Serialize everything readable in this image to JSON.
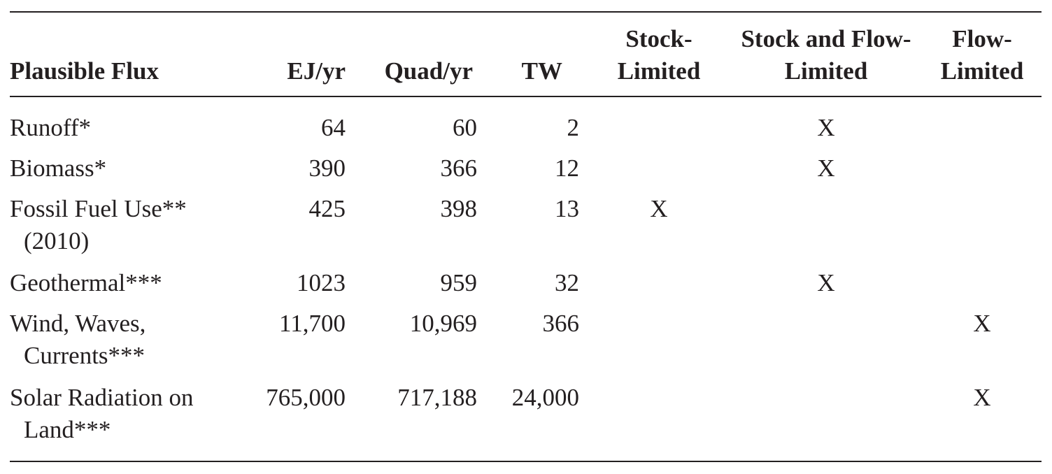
{
  "table": {
    "headers": {
      "flux": "Plausible Flux",
      "ej": "EJ/yr",
      "quad": "Quad/yr",
      "tw": "TW",
      "stock": [
        "Stock-",
        "Limited"
      ],
      "stockflow": [
        "Stock and Flow-",
        "Limited"
      ],
      "flow": [
        "Flow-",
        "Limited"
      ]
    },
    "rows": [
      {
        "flux": [
          "Runoff*"
        ],
        "ej": "64",
        "quad": "60",
        "tw": "2",
        "stock": "",
        "stockflow": "X",
        "flow": ""
      },
      {
        "flux": [
          "Biomass*"
        ],
        "ej": "390",
        "quad": "366",
        "tw": "12",
        "stock": "",
        "stockflow": "X",
        "flow": ""
      },
      {
        "flux": [
          "Fossil Fuel Use**",
          "(2010)"
        ],
        "ej": "425",
        "quad": "398",
        "tw": "13",
        "stock": "X",
        "stockflow": "",
        "flow": ""
      },
      {
        "flux": [
          "Geothermal***"
        ],
        "ej": "1023",
        "quad": "959",
        "tw": "32",
        "stock": "",
        "stockflow": "X",
        "flow": ""
      },
      {
        "flux": [
          "Wind, Waves,",
          "Currents***"
        ],
        "ej": "11,700",
        "quad": "10,969",
        "tw": "366",
        "stock": "",
        "stockflow": "",
        "flow": "X"
      },
      {
        "flux": [
          "Solar Radiation on",
          "Land***"
        ],
        "ej": "765,000",
        "quad": "717,188",
        "tw": "24,000",
        "stock": "",
        "stockflow": "",
        "flow": "X"
      }
    ]
  }
}
